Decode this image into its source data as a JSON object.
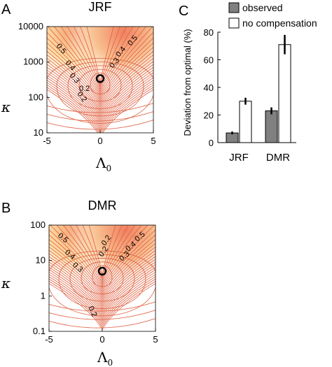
{
  "panels": {
    "a": {
      "letter": "A",
      "title": "JRF"
    },
    "b": {
      "letter": "B",
      "title": "DMR"
    },
    "c": {
      "letter": "C"
    }
  },
  "colors": {
    "contour": "#e06040",
    "hot": "#f3a070",
    "warm": "#fde6a8",
    "observed": "#808080",
    "no_comp": "#ffffff"
  },
  "chart_data": [
    {
      "type": "heatmap",
      "panel": "A",
      "title": "JRF",
      "xlabel": "Λ",
      "xlabel_sub": "0",
      "ylabel": "κ",
      "x_ticks": [
        "-5",
        "0",
        "5"
      ],
      "y_ticks": [
        "10",
        "100",
        "1000",
        "10000"
      ],
      "xlim": [
        -5,
        5
      ],
      "ylim": [
        10,
        10000
      ],
      "yscale": "log",
      "contour_labels": [
        "0.5",
        "0.4",
        "0.3",
        "0.2",
        "0.5",
        "0.4",
        "0.3",
        "0.2"
      ],
      "optimum_marker": {
        "x": 0,
        "y": 340
      }
    },
    {
      "type": "heatmap",
      "panel": "B",
      "title": "DMR",
      "xlabel": "Λ",
      "xlabel_sub": "0",
      "ylabel": "κ",
      "x_ticks": [
        "-5",
        "0",
        "5"
      ],
      "y_ticks": [
        "0.1",
        "1",
        "10",
        "100"
      ],
      "xlim": [
        -5,
        5
      ],
      "ylim": [
        0.1,
        100
      ],
      "yscale": "log",
      "contour_labels": [
        "0.5",
        "0.4",
        "0.3",
        "0.2",
        "0.5",
        "0.4",
        "0.3",
        "0.2",
        "0.2"
      ],
      "optimum_marker": {
        "x": 0,
        "y": 5
      }
    },
    {
      "type": "bar",
      "panel": "C",
      "categories": [
        "JRF",
        "DMR"
      ],
      "series": [
        {
          "name": "observed",
          "values": [
            7,
            23
          ],
          "errors": [
            1,
            2.5
          ]
        },
        {
          "name": "no compensation",
          "values": [
            30,
            71
          ],
          "errors": [
            2.5,
            7
          ]
        }
      ],
      "ylabel": "Deviation from optimal (%)",
      "ylim": [
        0,
        80
      ],
      "y_ticks": [
        "0",
        "20",
        "40",
        "60",
        "80"
      ],
      "legend_position": "top-right"
    }
  ]
}
